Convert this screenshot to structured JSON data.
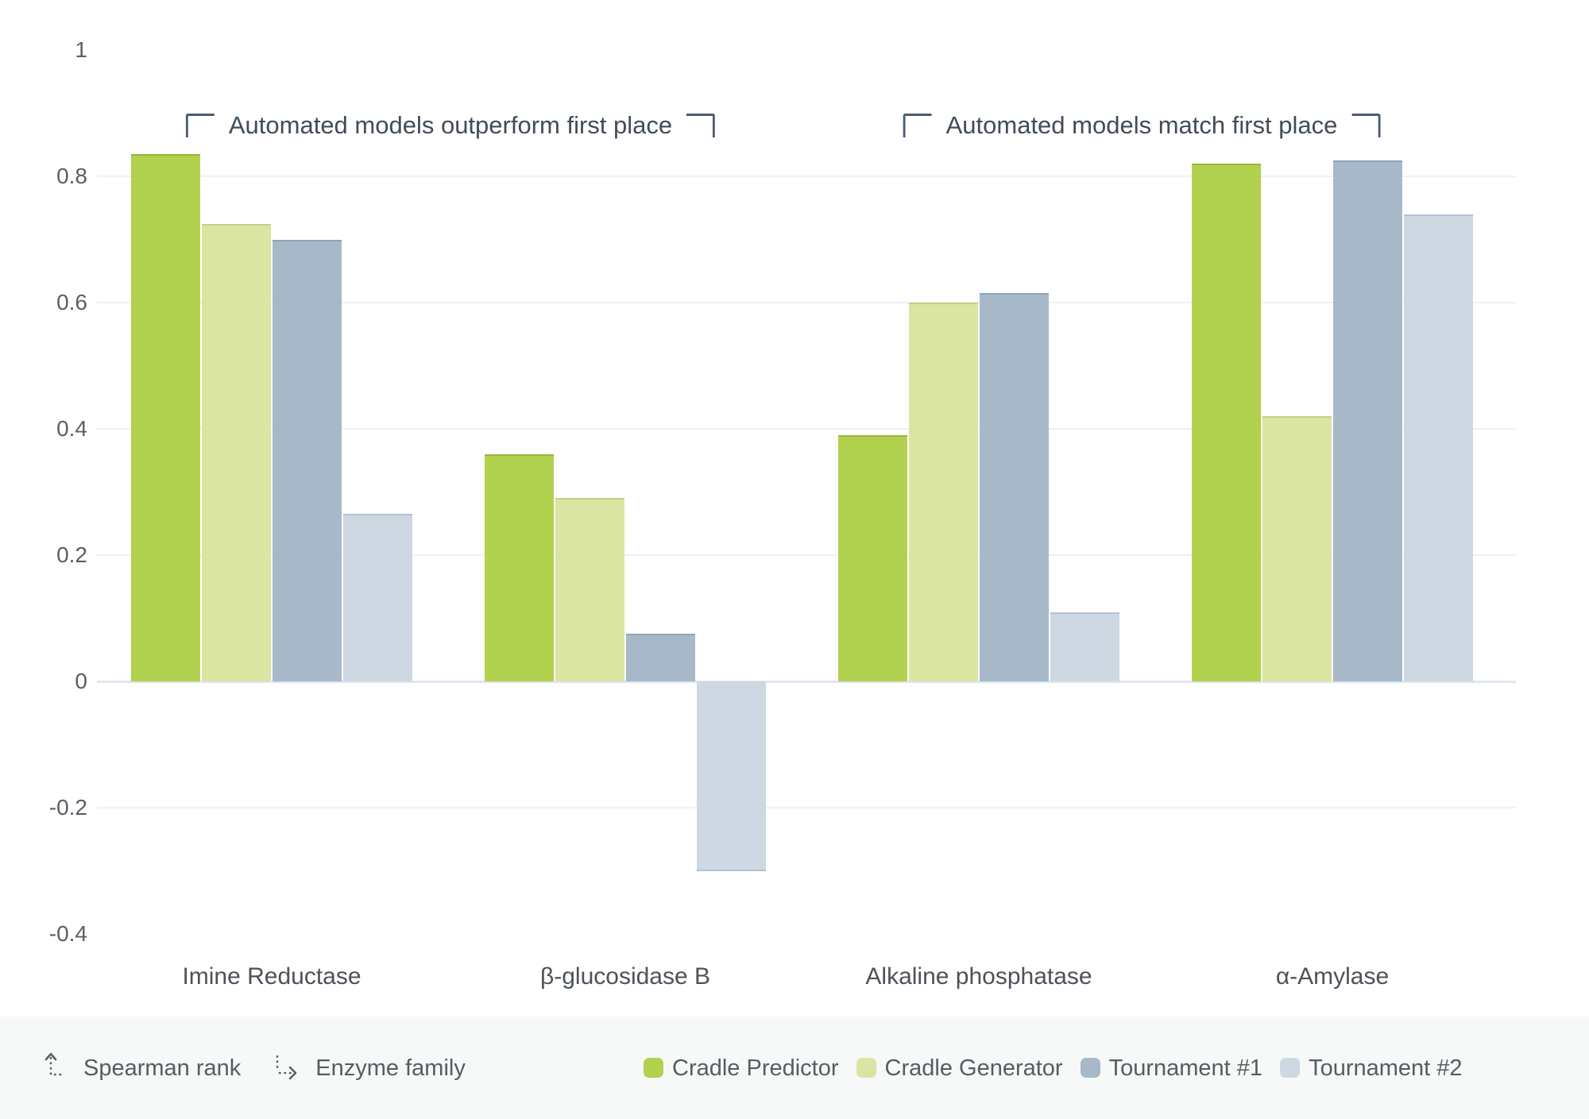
{
  "chart_data": {
    "type": "bar",
    "title": "",
    "categories": [
      "Imine Reductase",
      "β-glucosidase B",
      "Alkaline phosphatase",
      "α-Amylase"
    ],
    "series": [
      {
        "name": "Cradle Predictor",
        "color": "#b1d14f",
        "edge_color": "#98b63c",
        "values": [
          0.835,
          0.36,
          0.39,
          0.82
        ]
      },
      {
        "name": "Cradle Generator",
        "color": "#d9e5a1",
        "edge_color": "#c2d37d",
        "values": [
          0.725,
          0.29,
          0.6,
          0.42
        ]
      },
      {
        "name": "Tournament #1",
        "color": "#a7b9c9",
        "edge_color": "#8fa3b6",
        "values": [
          0.7,
          0.075,
          0.615,
          0.825
        ]
      },
      {
        "name": "Tournament #2",
        "color": "#cdd8e2",
        "edge_color": "#b3c3d2",
        "values": [
          0.265,
          -0.3,
          0.11,
          0.74
        ]
      }
    ],
    "y_tick_labels": [
      "1",
      "0.8",
      "0.6",
      "0.4",
      "0.2",
      "0",
      "-0.2",
      "-0.4"
    ],
    "y_tick_values": [
      1,
      0.8,
      0.6,
      0.4,
      0.2,
      0,
      -0.2,
      -0.4
    ],
    "gridline_values": [
      0.8,
      0.6,
      0.4,
      0.2,
      -0.2
    ],
    "ylim": [
      -0.4,
      1
    ],
    "xlabel": "Enzyme family",
    "ylabel": "Spearman rank",
    "grid": true,
    "legend_position": "bottom"
  },
  "annotations": [
    {
      "text": "Automated models outperform first place"
    },
    {
      "text": "Automated models match first place"
    }
  ],
  "footer": {
    "axis_keys": [
      {
        "icon": "y-axis-up-arrow-icon",
        "label": "Spearman rank"
      },
      {
        "icon": "x-axis-right-arrow-icon",
        "label": "Enzyme family"
      }
    ]
  },
  "colors": {
    "background": "#ffffff",
    "footer_background": "#f7f8f8",
    "gridline": "#eff1f3",
    "zero_line": "#dce7f1",
    "tick_label": "#595f66",
    "category_label": "#4c525a",
    "annotation_text": "#414c59",
    "bracket": "#4b5b70",
    "footer_text": "#565c63",
    "icon_stroke": "#5a6068"
  }
}
